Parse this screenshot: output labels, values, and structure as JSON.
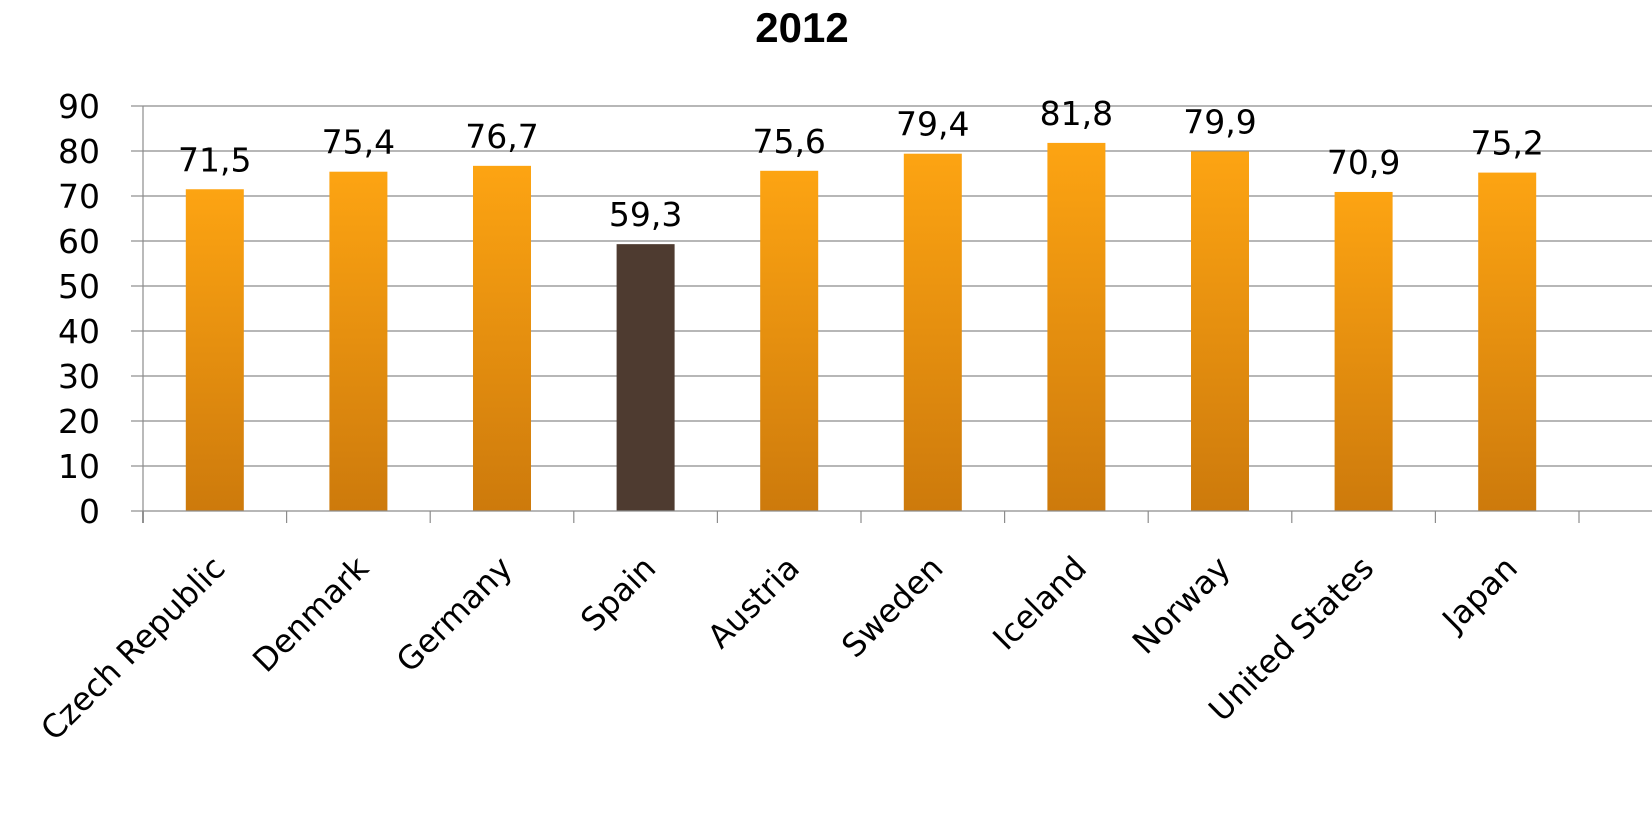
{
  "chart_data": {
    "type": "bar",
    "title": "2012",
    "categories": [
      "Czech Republic",
      "Denmark",
      "Germany",
      "Spain",
      "Austria",
      "Sweden",
      "Iceland",
      "Norway",
      "United States",
      "Japan"
    ],
    "values": [
      71.5,
      75.4,
      76.7,
      59.3,
      75.6,
      79.4,
      81.8,
      79.9,
      70.9,
      75.2
    ],
    "data_labels": [
      "71,5",
      "75,4",
      "76,7",
      "59,3",
      "75,6",
      "79,4",
      "81,8",
      "79,9",
      "70,9",
      "75,2"
    ],
    "highlight_category": "Spain",
    "xlabel": "",
    "ylabel": "",
    "ylim": [
      0,
      90
    ],
    "yticks": [
      "0",
      "10",
      "20",
      "30",
      "40",
      "50",
      "60",
      "70",
      "80",
      "90"
    ],
    "grid": true,
    "legend": "none",
    "colors": {
      "bar_top": "#FDA412",
      "bar_bottom": "#CD7A0C",
      "highlight": "#4E3B30",
      "grid": "#8C8C8C",
      "axis": "#8C8C8C"
    }
  }
}
